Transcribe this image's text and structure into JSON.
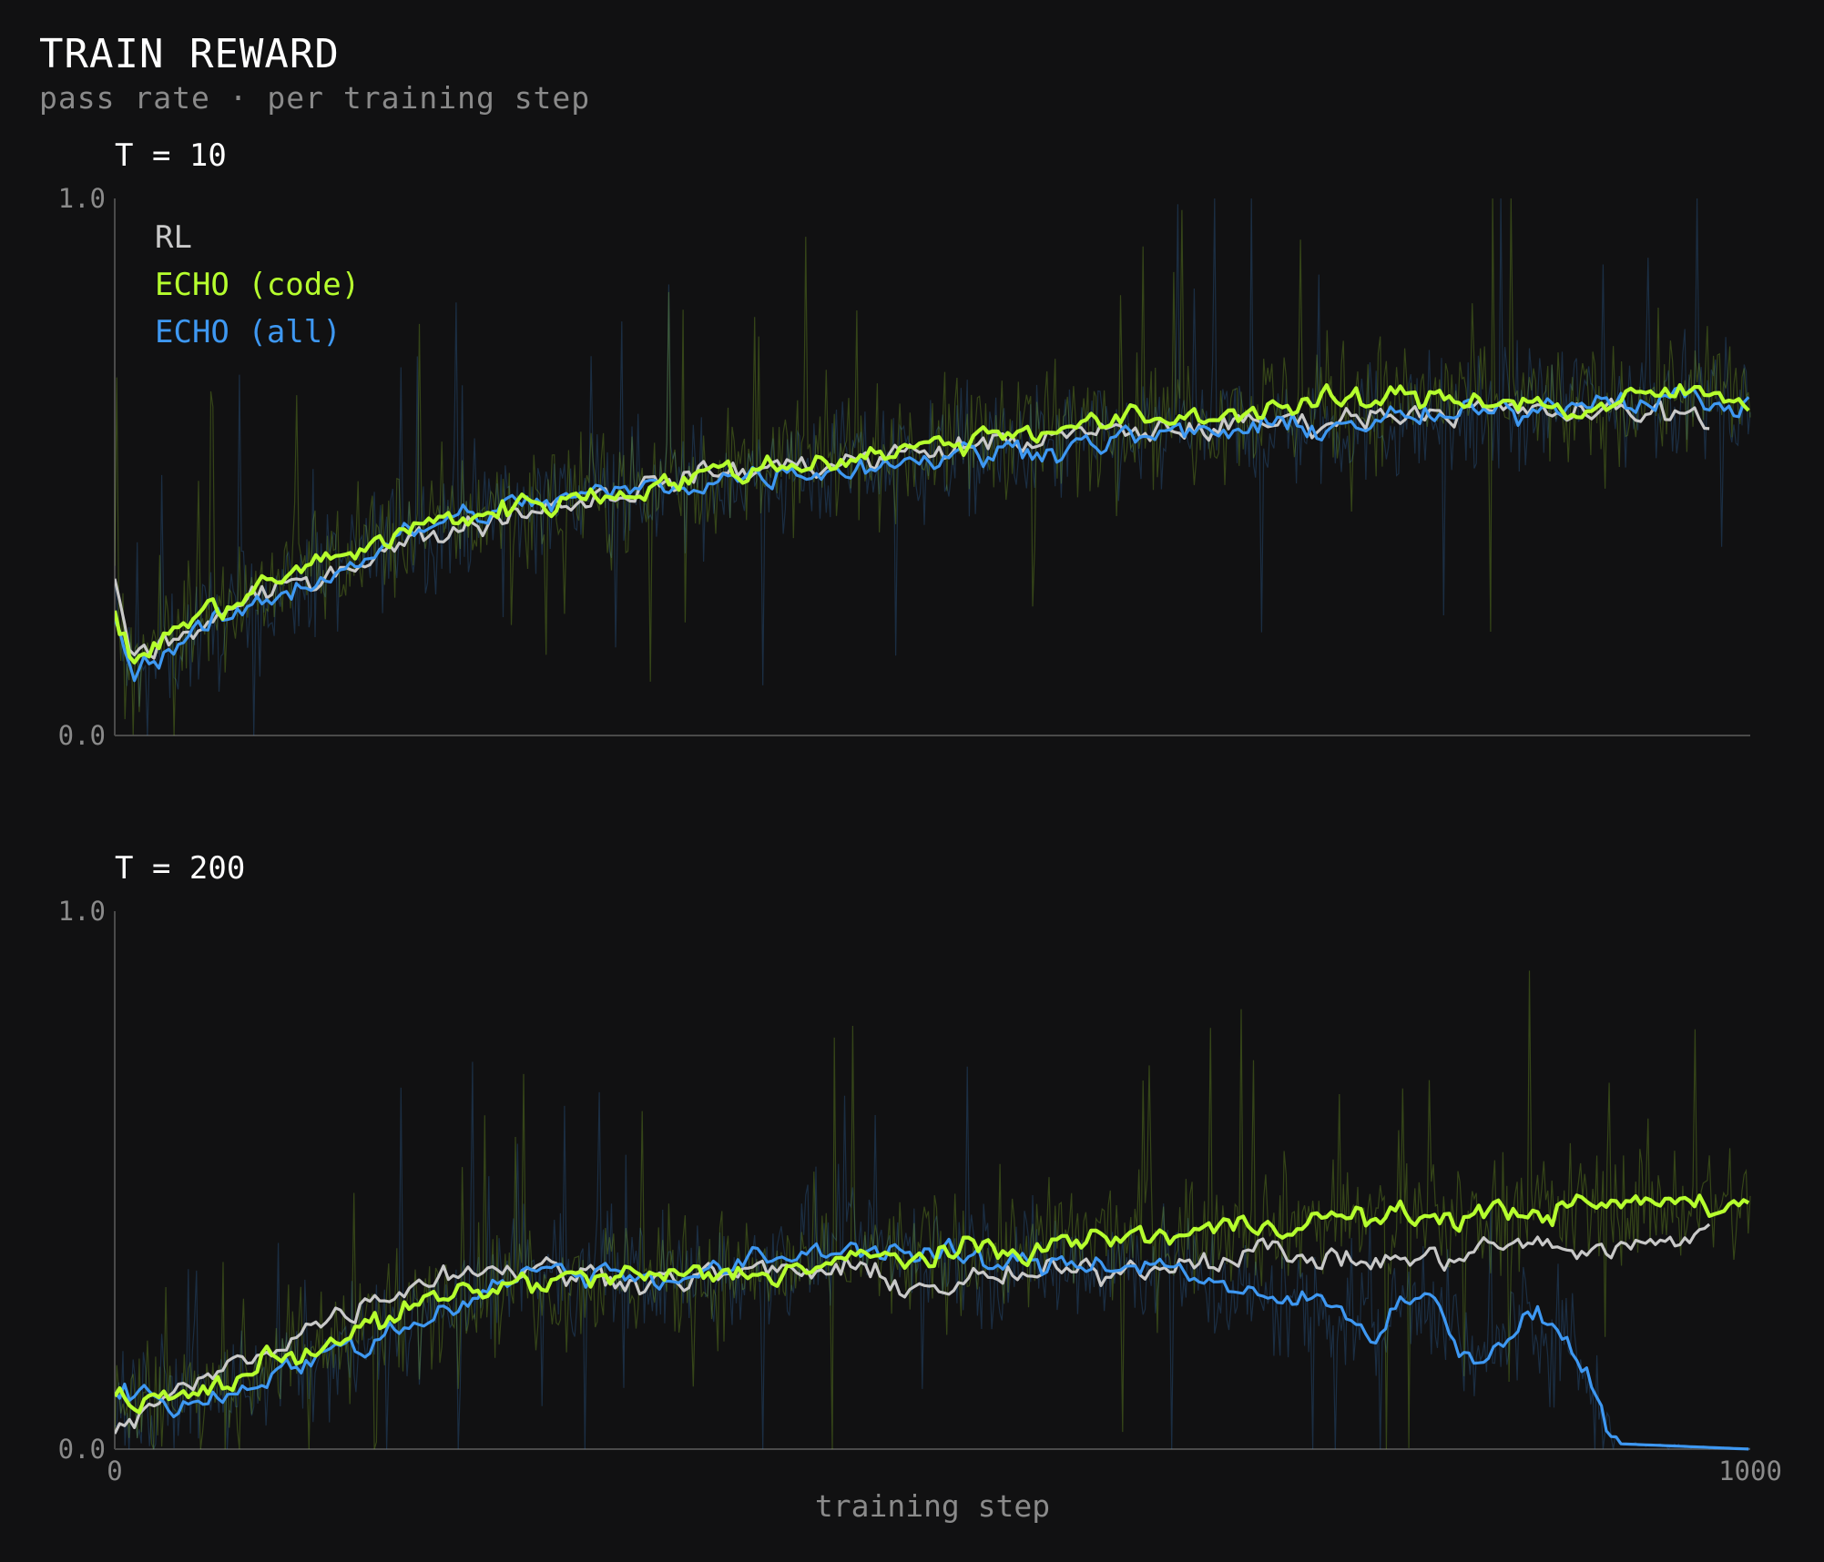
{
  "header": {
    "title": "TRAIN REWARD",
    "subtitle": "pass rate · per training step"
  },
  "colors": {
    "background": "#111112",
    "rl": "#c9c9c9",
    "echo_code": "#b6ff2e",
    "echo_all": "#3e98f2",
    "axis": "#4a4a4a",
    "tick_text": "#8a8a8a"
  },
  "chart_data": [
    {
      "type": "line",
      "title": "T = 10",
      "xlabel": "",
      "ylabel": "",
      "xlim": [
        0,
        1000
      ],
      "ylim": [
        0.0,
        1.0
      ],
      "y_ticks": [
        "1.0",
        "0.0"
      ],
      "x_ticks": [],
      "grid": false,
      "legend": "top-left",
      "series": [
        {
          "name": "RL",
          "color": "#c9c9c9",
          "x": [
            0,
            10,
            50,
            100,
            150,
            200,
            250,
            300,
            350,
            400,
            450,
            500,
            550,
            600,
            650,
            700,
            750,
            800,
            850,
            900,
            950,
            975
          ],
          "values": [
            0.3,
            0.14,
            0.2,
            0.27,
            0.33,
            0.38,
            0.42,
            0.45,
            0.48,
            0.5,
            0.51,
            0.53,
            0.55,
            0.56,
            0.57,
            0.58,
            0.59,
            0.61,
            0.6,
            0.6,
            0.6,
            0.59
          ]
        },
        {
          "name": "ECHO (code)",
          "color": "#b6ff2e",
          "x": [
            0,
            10,
            50,
            100,
            150,
            200,
            250,
            300,
            350,
            400,
            450,
            500,
            550,
            600,
            650,
            700,
            750,
            800,
            850,
            900,
            950,
            1000
          ],
          "values": [
            0.23,
            0.14,
            0.22,
            0.29,
            0.35,
            0.4,
            0.43,
            0.45,
            0.48,
            0.5,
            0.52,
            0.54,
            0.57,
            0.58,
            0.59,
            0.61,
            0.62,
            0.63,
            0.63,
            0.6,
            0.64,
            0.63
          ]
        },
        {
          "name": "ECHO (all)",
          "color": "#3e98f2",
          "x": [
            0,
            10,
            50,
            100,
            150,
            200,
            250,
            300,
            350,
            400,
            450,
            500,
            550,
            600,
            650,
            700,
            750,
            800,
            850,
            900,
            950,
            1000
          ],
          "values": [
            0.22,
            0.12,
            0.19,
            0.26,
            0.33,
            0.4,
            0.43,
            0.45,
            0.47,
            0.49,
            0.5,
            0.52,
            0.53,
            0.55,
            0.56,
            0.57,
            0.58,
            0.59,
            0.6,
            0.63,
            0.63,
            0.61
          ]
        }
      ]
    },
    {
      "type": "line",
      "title": "T = 200",
      "xlabel": "training step",
      "ylabel": "",
      "xlim": [
        0,
        1000
      ],
      "ylim": [
        0.0,
        1.0
      ],
      "y_ticks": [
        "1.0",
        "0.0"
      ],
      "x_ticks": [
        "0",
        "1000"
      ],
      "grid": false,
      "legend": "none",
      "series": [
        {
          "name": "RL",
          "color": "#c9c9c9",
          "x": [
            0,
            50,
            100,
            150,
            200,
            250,
            300,
            350,
            400,
            450,
            500,
            550,
            600,
            650,
            700,
            750,
            800,
            850,
            900,
            950,
            975
          ],
          "values": [
            0.04,
            0.12,
            0.2,
            0.27,
            0.33,
            0.34,
            0.32,
            0.32,
            0.33,
            0.33,
            0.3,
            0.32,
            0.33,
            0.35,
            0.37,
            0.35,
            0.35,
            0.38,
            0.37,
            0.38,
            0.42
          ]
        },
        {
          "name": "ECHO (code)",
          "color": "#b6ff2e",
          "x": [
            0,
            50,
            100,
            150,
            200,
            250,
            300,
            350,
            400,
            450,
            500,
            550,
            600,
            650,
            700,
            750,
            800,
            850,
            900,
            950,
            1000
          ],
          "values": [
            0.08,
            0.1,
            0.17,
            0.22,
            0.28,
            0.31,
            0.32,
            0.32,
            0.33,
            0.35,
            0.36,
            0.37,
            0.39,
            0.4,
            0.42,
            0.43,
            0.43,
            0.44,
            0.45,
            0.46,
            0.45
          ]
        },
        {
          "name": "ECHO (all)",
          "color": "#3e98f2",
          "x": [
            0,
            50,
            100,
            150,
            200,
            250,
            300,
            350,
            400,
            450,
            500,
            550,
            600,
            650,
            700,
            730,
            750,
            770,
            800,
            830,
            850,
            870,
            890,
            920,
            1000
          ],
          "values": [
            0.11,
            0.08,
            0.15,
            0.19,
            0.26,
            0.33,
            0.33,
            0.32,
            0.35,
            0.38,
            0.36,
            0.34,
            0.35,
            0.34,
            0.27,
            0.28,
            0.26,
            0.22,
            0.31,
            0.15,
            0.21,
            0.24,
            0.2,
            0.01,
            0.0
          ]
        }
      ]
    }
  ]
}
